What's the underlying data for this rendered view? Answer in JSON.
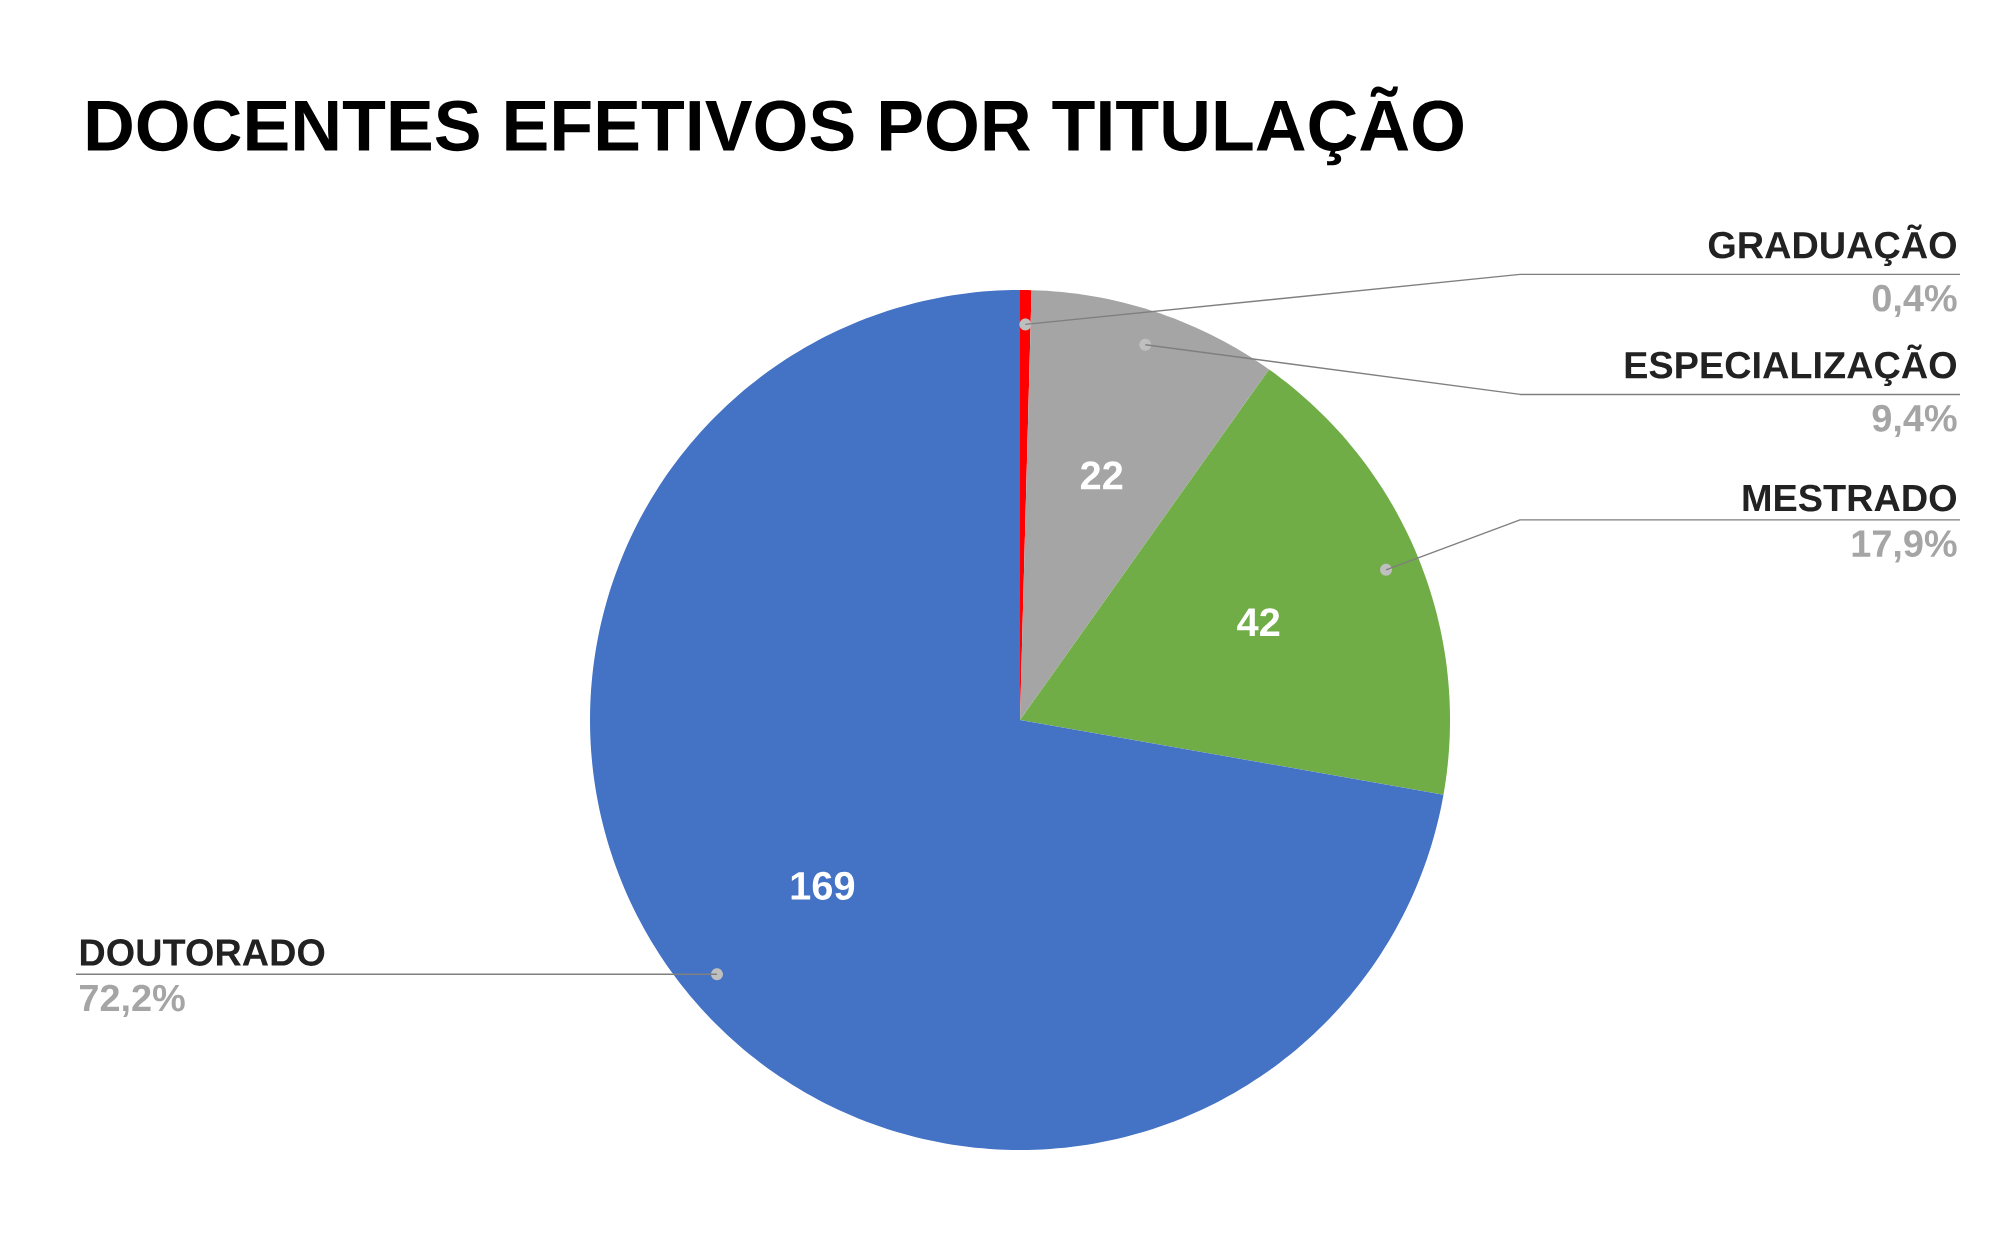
{
  "chart_data": {
    "type": "pie",
    "title": "DOCENTES EFETIVOS POR TITULAÇÃO",
    "categories": [
      "GRADUAÇÃO",
      "ESPECIALIZAÇÃO",
      "MESTRADO",
      "DOUTORADO"
    ],
    "values": [
      1,
      22,
      42,
      169
    ],
    "colors": [
      "#ff0000",
      "#a5a5a5",
      "#70ad47",
      "#4472c4"
    ],
    "value_labels": [
      null,
      "22",
      "42",
      "169"
    ],
    "annotations": [
      "0,4%",
      "9,4%",
      "17,9%",
      "72,2%"
    ]
  }
}
